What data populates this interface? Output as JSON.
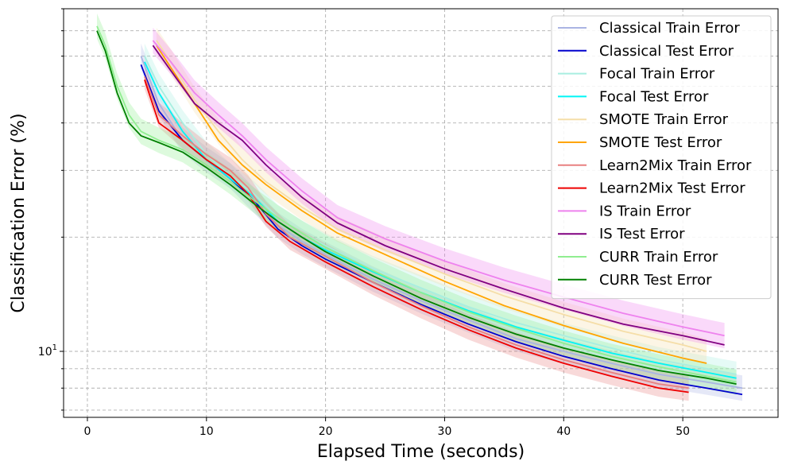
{
  "chart_data": {
    "type": "line",
    "title": "",
    "xlabel": "Elapsed Time (seconds)",
    "ylabel": "Classification Error (%)",
    "xlim": [
      -2,
      58
    ],
    "ylim": [
      6.7,
      80
    ],
    "yscale": "log",
    "grid": true,
    "legend_position": "top-right",
    "x_ticks": [
      0,
      10,
      20,
      30,
      40,
      50
    ],
    "y_tick_labels": [
      {
        "value": 10,
        "label": "10",
        "exp": "1"
      }
    ],
    "series": [
      {
        "name": "Classical Train Error",
        "color": "#aab4e3",
        "band": true,
        "x": [
          4.5,
          6,
          8,
          10,
          12,
          14,
          16,
          18,
          20,
          24,
          28,
          32,
          36,
          40,
          44,
          48,
          52,
          55
        ],
        "y": [
          60,
          45,
          36,
          32,
          29,
          25,
          21.5,
          19.5,
          18,
          15.5,
          13.6,
          12.1,
          10.8,
          10.0,
          9.3,
          8.7,
          8.3,
          8.0
        ]
      },
      {
        "name": "Classical Test Error",
        "color": "#0000cd",
        "band": false,
        "x": [
          4.5,
          6,
          8,
          10,
          12,
          14,
          16,
          18,
          20,
          24,
          28,
          32,
          36,
          40,
          44,
          48,
          52,
          55
        ],
        "y": [
          57,
          43,
          36,
          32,
          28.5,
          25,
          21,
          19,
          17.5,
          15.2,
          13.3,
          11.8,
          10.6,
          9.7,
          9.0,
          8.4,
          8.0,
          7.7
        ]
      },
      {
        "name": "Focal Train Error",
        "color": "#a8eee0",
        "band": true,
        "x": [
          4.8,
          6,
          8,
          10,
          12,
          14,
          16,
          18,
          20,
          24,
          28,
          32,
          36,
          40,
          44,
          48,
          52,
          54.5
        ],
        "y": [
          60,
          50,
          40,
          33,
          29,
          26,
          22.5,
          20.5,
          19,
          16.5,
          14.7,
          13.1,
          11.9,
          11.0,
          10.2,
          9.5,
          9.0,
          8.7
        ]
      },
      {
        "name": "Focal Test Error",
        "color": "#00f5f5",
        "band": false,
        "x": [
          4.8,
          6,
          8,
          10,
          12,
          14,
          16,
          18,
          20,
          24,
          28,
          32,
          36,
          40,
          44,
          48,
          52,
          54.5
        ],
        "y": [
          58,
          48,
          38,
          32,
          28.5,
          25.5,
          22,
          20,
          18.5,
          16.2,
          14.3,
          12.8,
          11.6,
          10.7,
          9.9,
          9.3,
          8.8,
          8.5
        ]
      },
      {
        "name": "SMOTE Train Error",
        "color": "#f5dea8",
        "band": true,
        "x": [
          5.8,
          7,
          9,
          11,
          13,
          15,
          18,
          21,
          25,
          30,
          35,
          40,
          45,
          50,
          52
        ],
        "y": [
          66,
          58,
          46,
          38,
          32,
          28,
          24,
          21,
          18.5,
          16,
          14,
          12.5,
          11.3,
          10.4,
          10.0
        ]
      },
      {
        "name": "SMOTE Test Error",
        "color": "#ffa500",
        "band": false,
        "x": [
          5.8,
          7,
          9,
          11,
          13,
          15,
          18,
          21,
          25,
          30,
          35,
          40,
          45,
          50,
          52
        ],
        "y": [
          64,
          56,
          45,
          36,
          31,
          27.5,
          23.5,
          20.5,
          18,
          15.3,
          13.2,
          11.7,
          10.5,
          9.6,
          9.3
        ]
      },
      {
        "name": "Learn2Mix Train Error",
        "color": "#e88080",
        "band": true,
        "x": [
          4.8,
          6,
          8,
          10,
          12,
          13.5,
          15,
          17,
          20,
          24,
          28,
          32,
          36,
          40,
          44,
          48,
          50.5
        ],
        "y": [
          53,
          42,
          37,
          33,
          30,
          27,
          23,
          20,
          17.8,
          15.2,
          13.2,
          11.6,
          10.4,
          9.5,
          8.8,
          8.2,
          8.0
        ]
      },
      {
        "name": "Learn2Mix Test Error",
        "color": "#ee0000",
        "band": false,
        "x": [
          4.8,
          6,
          8,
          10,
          12,
          13.5,
          15,
          17,
          20,
          24,
          28,
          32,
          36,
          40,
          44,
          48,
          50.5
        ],
        "y": [
          52,
          40,
          36,
          32,
          29,
          26,
          22,
          19.5,
          17.2,
          14.8,
          12.9,
          11.4,
          10.2,
          9.3,
          8.6,
          8.0,
          7.8
        ]
      },
      {
        "name": "IS Train Error",
        "color": "#ee82ee",
        "band": true,
        "x": [
          5.5,
          7,
          9,
          11,
          13,
          15,
          18,
          21,
          25,
          30,
          35,
          40,
          45,
          50,
          53.5
        ],
        "y": [
          66,
          58,
          48,
          42,
          37,
          32,
          26.5,
          22.5,
          19.8,
          17.3,
          15.4,
          13.9,
          12.6,
          11.6,
          11.0
        ]
      },
      {
        "name": "IS Test Error",
        "color": "#800080",
        "band": false,
        "x": [
          5.5,
          7,
          9,
          11,
          13,
          15,
          18,
          21,
          25,
          30,
          35,
          40,
          45,
          50,
          53.5
        ],
        "y": [
          64,
          55,
          45,
          40,
          36,
          31,
          25.5,
          21.8,
          19,
          16.5,
          14.6,
          13.0,
          11.8,
          11.0,
          10.4
        ]
      },
      {
        "name": "CURR Train Error",
        "color": "#90ee90",
        "band": true,
        "x": [
          0.8,
          1.5,
          2.5,
          3.5,
          4.5,
          6,
          8,
          10,
          12,
          14,
          16,
          18,
          20,
          24,
          28,
          32,
          36,
          40,
          44,
          48,
          52,
          54.5
        ],
        "y": [
          72,
          64,
          50,
          42,
          38,
          36,
          34,
          31,
          28,
          25,
          22.5,
          20.5,
          18.8,
          16.3,
          14.3,
          12.7,
          11.5,
          10.5,
          9.7,
          9.1,
          8.6,
          8.3
        ]
      },
      {
        "name": "CURR Test Error",
        "color": "#008000",
        "band": false,
        "x": [
          0.8,
          1.5,
          2.5,
          3.5,
          4.5,
          6,
          8,
          10,
          12,
          14,
          16,
          18,
          20,
          24,
          28,
          32,
          36,
          40,
          44,
          48,
          52,
          54.5
        ],
        "y": [
          70,
          62,
          48,
          40,
          37,
          35.5,
          33.5,
          30.5,
          27.5,
          24.5,
          22,
          20,
          18.3,
          15.8,
          13.8,
          12.3,
          11.1,
          10.2,
          9.5,
          8.9,
          8.5,
          8.2
        ]
      }
    ]
  }
}
